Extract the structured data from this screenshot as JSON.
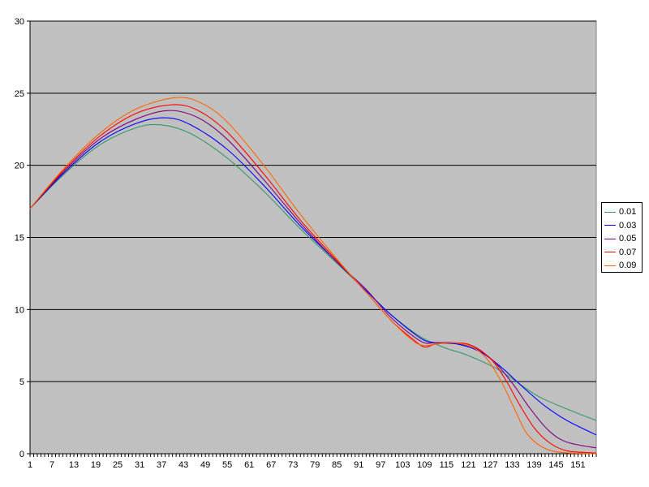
{
  "chart_data": {
    "type": "line",
    "title": "",
    "xlabel": "",
    "ylabel": "",
    "ylim": [
      0,
      30
    ],
    "yticks": [
      0,
      5,
      10,
      15,
      20,
      25,
      30
    ],
    "xlim": [
      1,
      156
    ],
    "xticks": [
      1,
      7,
      13,
      19,
      25,
      31,
      37,
      43,
      49,
      55,
      61,
      67,
      73,
      79,
      85,
      91,
      97,
      103,
      109,
      115,
      121,
      127,
      133,
      139,
      145,
      151
    ],
    "grid": true,
    "legend_position": "right",
    "plot_background": "#c0c0c0",
    "series": [
      {
        "name": "0.01",
        "color": "#339966",
        "x": [
          1,
          10,
          20,
          30,
          37,
          45,
          55,
          65,
          75,
          85,
          93,
          100,
          108,
          115,
          120,
          128,
          133,
          140,
          148,
          156
        ],
        "y": [
          17.0,
          19.3,
          21.4,
          22.6,
          22.8,
          22.2,
          20.5,
          18.2,
          15.6,
          13.2,
          11.3,
          9.6,
          8.1,
          7.3,
          6.9,
          6.0,
          5.2,
          4.0,
          3.1,
          2.3
        ]
      },
      {
        "name": "0.03",
        "color": "#0000ff",
        "x": [
          1,
          10,
          20,
          30,
          38,
          45,
          55,
          65,
          75,
          85,
          93,
          100,
          108,
          112,
          118,
          124,
          130,
          136,
          142,
          148,
          156
        ],
        "y": [
          17.0,
          19.4,
          21.6,
          22.9,
          23.3,
          22.8,
          21.1,
          18.6,
          15.8,
          13.3,
          11.3,
          9.6,
          8.0,
          7.7,
          7.6,
          7.1,
          6.0,
          4.6,
          3.3,
          2.3,
          1.3
        ]
      },
      {
        "name": "0.05",
        "color": "#800080",
        "x": [
          1,
          10,
          20,
          30,
          39,
          47,
          55,
          65,
          75,
          85,
          93,
          100,
          108,
          112,
          117,
          123,
          128,
          133,
          138,
          143,
          148,
          156
        ],
        "y": [
          17.0,
          19.5,
          21.8,
          23.2,
          23.8,
          23.3,
          21.8,
          19.0,
          16.0,
          13.3,
          11.4,
          9.4,
          7.8,
          7.7,
          7.7,
          7.3,
          6.4,
          4.9,
          3.1,
          1.6,
          0.8,
          0.4
        ]
      },
      {
        "name": "0.07",
        "color": "#ff0000",
        "x": [
          1,
          10,
          20,
          30,
          40,
          47,
          55,
          65,
          75,
          85,
          93,
          100,
          106,
          109,
          112,
          117,
          122,
          127,
          131,
          135,
          139,
          143,
          148,
          156
        ],
        "y": [
          17.0,
          19.6,
          22.0,
          23.6,
          24.2,
          23.8,
          22.3,
          19.4,
          16.2,
          13.4,
          11.2,
          9.2,
          7.9,
          7.4,
          7.6,
          7.7,
          7.5,
          6.6,
          5.2,
          3.4,
          1.8,
          0.8,
          0.2,
          0.05
        ]
      },
      {
        "name": "0.09",
        "color": "#ff6600",
        "x": [
          1,
          10,
          20,
          30,
          41,
          48,
          55,
          65,
          75,
          85,
          93,
          100,
          106,
          109,
          112,
          117,
          122,
          126,
          130,
          134,
          137,
          141,
          146,
          156
        ],
        "y": [
          17.0,
          19.7,
          22.2,
          23.9,
          24.7,
          24.3,
          23.0,
          20.0,
          16.6,
          13.5,
          11.2,
          9.2,
          7.8,
          7.5,
          7.6,
          7.7,
          7.4,
          6.6,
          5.0,
          2.9,
          1.4,
          0.5,
          0.1,
          0.0
        ]
      }
    ]
  }
}
